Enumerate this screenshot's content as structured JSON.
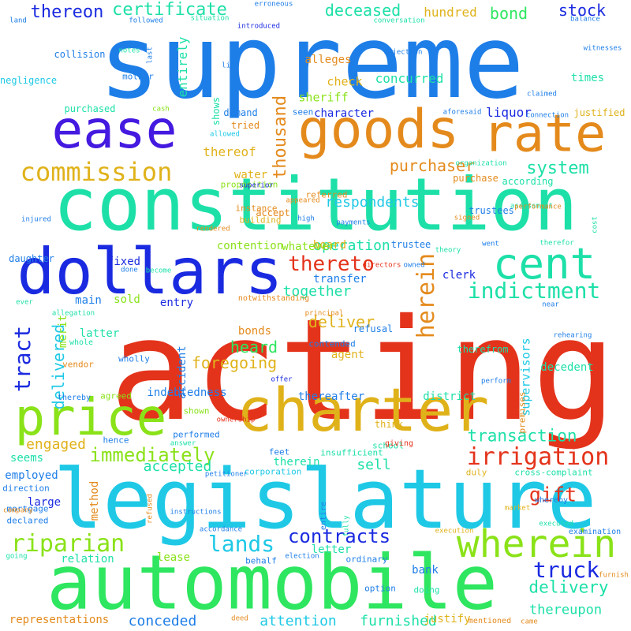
{
  "palette": {
    "blue": "#1e7ee8",
    "teal": "#1de0a8",
    "orange": "#e48a1c",
    "red": "#e4331b",
    "purple": "#4419e0",
    "green": "#2ee65f",
    "lime": "#8ae218",
    "cyan": "#1fc9e6",
    "gold": "#e0b21a",
    "navy": "#1a2ae0"
  },
  "words": [
    {
      "text": "supreme",
      "color": "blue"
    },
    {
      "text": "acting",
      "color": "red"
    },
    {
      "text": "constitution",
      "color": "teal"
    },
    {
      "text": "legislature",
      "color": "cyan"
    },
    {
      "text": "automobile",
      "color": "green"
    },
    {
      "text": "charter",
      "color": "gold"
    },
    {
      "text": "dollars",
      "color": "navy"
    },
    {
      "text": "goods",
      "color": "orange"
    },
    {
      "text": "rate",
      "color": "orange"
    },
    {
      "text": "ease",
      "color": "purple"
    },
    {
      "text": "price",
      "color": "lime"
    },
    {
      "text": "cent",
      "color": "teal"
    },
    {
      "text": "wherein",
      "color": "lime"
    },
    {
      "text": "commission",
      "color": "gold"
    },
    {
      "text": "riparian",
      "color": "lime"
    },
    {
      "text": "irrigation",
      "color": "red"
    },
    {
      "text": "indictment",
      "color": "teal"
    },
    {
      "text": "herein",
      "color": "orange"
    },
    {
      "text": "gift",
      "color": "red"
    },
    {
      "text": "thereto",
      "color": "red"
    },
    {
      "text": "lands",
      "color": "cyan"
    },
    {
      "text": "contracts",
      "color": "navy"
    },
    {
      "text": "truck",
      "color": "navy"
    },
    {
      "text": "immediately",
      "color": "lime"
    },
    {
      "text": "transaction",
      "color": "teal"
    },
    {
      "text": "delivery",
      "color": "teal"
    },
    {
      "text": "system",
      "color": "teal"
    },
    {
      "text": "purchaser",
      "color": "orange"
    },
    {
      "text": "thousand",
      "color": "orange"
    },
    {
      "text": "tract",
      "color": "navy"
    },
    {
      "text": "certificate",
      "color": "teal"
    },
    {
      "text": "deceased",
      "color": "teal"
    },
    {
      "text": "thereon",
      "color": "navy"
    },
    {
      "text": "bond",
      "color": "green"
    },
    {
      "text": "stock",
      "color": "navy"
    },
    {
      "text": "heard",
      "color": "green"
    },
    {
      "text": "deliver",
      "color": "gold"
    },
    {
      "text": "delivered",
      "color": "cyan"
    },
    {
      "text": "foregoing",
      "color": "gold"
    },
    {
      "text": "supervisors",
      "color": "cyan"
    },
    {
      "text": "thereupon",
      "color": "teal"
    },
    {
      "text": "respondents",
      "color": "cyan"
    },
    {
      "text": "together",
      "color": "teal"
    },
    {
      "text": "operation",
      "color": "teal"
    },
    {
      "text": "accepted",
      "color": "teal"
    },
    {
      "text": "engaged",
      "color": "gold"
    },
    {
      "text": "sell",
      "color": "teal"
    },
    {
      "text": "attention",
      "color": "cyan"
    },
    {
      "text": "conceded",
      "color": "blue"
    },
    {
      "text": "furnished",
      "color": "teal"
    },
    {
      "text": "representations",
      "color": "orange"
    },
    {
      "text": "hundred",
      "color": "gold"
    },
    {
      "text": "board",
      "color": "gold"
    },
    {
      "text": "alleges",
      "color": "orange"
    },
    {
      "text": "check",
      "color": "gold"
    },
    {
      "text": "sheriff",
      "color": "lime"
    },
    {
      "text": "concurred",
      "color": "teal"
    },
    {
      "text": "liquor",
      "color": "navy"
    },
    {
      "text": "character",
      "color": "navy"
    },
    {
      "text": "times",
      "color": "teal"
    },
    {
      "text": "justified",
      "color": "gold"
    },
    {
      "text": "entirely",
      "color": "teal"
    },
    {
      "text": "thereof",
      "color": "gold"
    },
    {
      "text": "water",
      "color": "gold"
    },
    {
      "text": "fixed",
      "color": "navy"
    },
    {
      "text": "sold",
      "color": "lime"
    },
    {
      "text": "main",
      "color": "blue"
    },
    {
      "text": "entry",
      "color": "navy"
    },
    {
      "text": "latter",
      "color": "teal"
    },
    {
      "text": "bonds",
      "color": "orange"
    },
    {
      "text": "agent",
      "color": "gold"
    },
    {
      "text": "transfer",
      "color": "blue"
    },
    {
      "text": "clerk",
      "color": "navy"
    },
    {
      "text": "merit",
      "color": "lime"
    },
    {
      "text": "accident",
      "color": "blue"
    },
    {
      "text": "indebtedness",
      "color": "blue"
    },
    {
      "text": "thereafter",
      "color": "blue"
    },
    {
      "text": "district",
      "color": "teal"
    },
    {
      "text": "decedent",
      "color": "teal"
    },
    {
      "text": "therein",
      "color": "teal"
    },
    {
      "text": "employed",
      "color": "blue"
    },
    {
      "text": "seems",
      "color": "teal"
    },
    {
      "text": "large",
      "color": "navy"
    },
    {
      "text": "method",
      "color": "orange"
    },
    {
      "text": "shown",
      "color": "lime"
    },
    {
      "text": "lease",
      "color": "lime"
    },
    {
      "text": "relation",
      "color": "teal"
    },
    {
      "text": "letter",
      "color": "teal"
    },
    {
      "text": "bank",
      "color": "blue"
    },
    {
      "text": "justify",
      "color": "gold"
    },
    {
      "text": "contention",
      "color": "lime"
    },
    {
      "text": "whatever",
      "color": "lime"
    },
    {
      "text": "daughter",
      "color": "blue"
    },
    {
      "text": "purchase",
      "color": "orange"
    },
    {
      "text": "according",
      "color": "teal"
    },
    {
      "text": "trustees",
      "color": "blue"
    },
    {
      "text": "trustee",
      "color": "blue"
    },
    {
      "text": "accept",
      "color": "orange"
    },
    {
      "text": "collision",
      "color": "blue"
    },
    {
      "text": "negligence",
      "color": "cyan"
    },
    {
      "text": "purchased",
      "color": "teal"
    },
    {
      "text": "mother",
      "color": "blue"
    },
    {
      "text": "tried",
      "color": "orange"
    },
    {
      "text": "demand",
      "color": "blue"
    },
    {
      "text": "shows",
      "color": "teal"
    },
    {
      "text": "seen",
      "color": "blue"
    },
    {
      "text": "proposition",
      "color": "lime"
    },
    {
      "text": "referred",
      "color": "orange"
    },
    {
      "text": "instance",
      "color": "orange"
    },
    {
      "text": "building",
      "color": "gold"
    },
    {
      "text": "think",
      "color": "gold"
    },
    {
      "text": "notwithstanding",
      "color": "orange"
    },
    {
      "text": "contended",
      "color": "blue"
    },
    {
      "text": "refusal",
      "color": "blue"
    },
    {
      "text": "therefrom",
      "color": "teal"
    },
    {
      "text": "vendor",
      "color": "orange"
    },
    {
      "text": "whole",
      "color": "teal"
    },
    {
      "text": "wholly",
      "color": "blue"
    },
    {
      "text": "agreed",
      "color": "lime"
    },
    {
      "text": "thereby",
      "color": "blue"
    },
    {
      "text": "hence",
      "color": "blue"
    },
    {
      "text": "performed",
      "color": "blue"
    },
    {
      "text": "feet",
      "color": "blue"
    },
    {
      "text": "insufficient",
      "color": "teal"
    },
    {
      "text": "school",
      "color": "teal"
    },
    {
      "text": "giving",
      "color": "red"
    },
    {
      "text": "premises",
      "color": "orange"
    },
    {
      "text": "duly",
      "color": "gold"
    },
    {
      "text": "cross-complaint",
      "color": "teal"
    },
    {
      "text": "corporation",
      "color": "cyan"
    },
    {
      "text": "direction",
      "color": "blue"
    },
    {
      "text": "mortgage",
      "color": "blue"
    },
    {
      "text": "declared",
      "color": "blue"
    },
    {
      "text": "company",
      "color": "orange"
    },
    {
      "text": "refused",
      "color": "orange"
    },
    {
      "text": "instructions",
      "color": "blue"
    },
    {
      "text": "accordance",
      "color": "blue"
    },
    {
      "text": "execution",
      "color": "gold"
    },
    {
      "text": "examination",
      "color": "blue"
    },
    {
      "text": "executed",
      "color": "teal"
    },
    {
      "text": "whereby",
      "color": "blue"
    },
    {
      "text": "market",
      "color": "gold"
    },
    {
      "text": "behalf",
      "color": "blue"
    },
    {
      "text": "election",
      "color": "blue"
    },
    {
      "text": "ordinary",
      "color": "blue"
    },
    {
      "text": "entire",
      "color": "blue"
    },
    {
      "text": "fully",
      "color": "teal"
    },
    {
      "text": "doing",
      "color": "teal"
    },
    {
      "text": "option",
      "color": "blue"
    },
    {
      "text": "deed",
      "color": "orange"
    },
    {
      "text": "came",
      "color": "orange"
    },
    {
      "text": "mentioned",
      "color": "orange"
    },
    {
      "text": "furnish",
      "color": "orange"
    },
    {
      "text": "going",
      "color": "teal"
    },
    {
      "text": "land",
      "color": "blue"
    },
    {
      "text": "followed",
      "color": "blue"
    },
    {
      "text": "situation",
      "color": "teal"
    },
    {
      "text": "erroneous",
      "color": "blue"
    },
    {
      "text": "conversation",
      "color": "teal"
    },
    {
      "text": "balance",
      "color": "blue"
    },
    {
      "text": "introduced",
      "color": "navy"
    },
    {
      "text": "notes",
      "color": "teal"
    },
    {
      "text": "last",
      "color": "blue"
    },
    {
      "text": "objection",
      "color": "blue"
    },
    {
      "text": "witnesses",
      "color": "blue"
    },
    {
      "text": "line",
      "color": "blue"
    },
    {
      "text": "claimed",
      "color": "blue"
    },
    {
      "text": "cash",
      "color": "lime"
    },
    {
      "text": "aforesaid",
      "color": "blue"
    },
    {
      "text": "connection",
      "color": "blue"
    },
    {
      "text": "allowed",
      "color": "cyan"
    },
    {
      "text": "appeared",
      "color": "orange"
    },
    {
      "text": "superior",
      "color": "navy"
    },
    {
      "text": "organization",
      "color": "teal"
    },
    {
      "text": "assessment",
      "color": "teal"
    },
    {
      "text": "performance",
      "color": "orange"
    },
    {
      "text": "cost",
      "color": "teal"
    },
    {
      "text": "injured",
      "color": "blue"
    },
    {
      "text": "rendered",
      "color": "orange"
    },
    {
      "text": "high",
      "color": "blue"
    },
    {
      "text": "payments",
      "color": "blue"
    },
    {
      "text": "signed",
      "color": "orange"
    },
    {
      "text": "went",
      "color": "blue"
    },
    {
      "text": "therefor",
      "color": "teal"
    },
    {
      "text": "directors",
      "color": "red"
    },
    {
      "text": "theory",
      "color": "teal"
    },
    {
      "text": "done",
      "color": "blue"
    },
    {
      "text": "become",
      "color": "teal"
    },
    {
      "text": "owned",
      "color": "blue"
    },
    {
      "text": "ever",
      "color": "teal"
    },
    {
      "text": "allegation",
      "color": "teal"
    },
    {
      "text": "principal",
      "color": "orange"
    },
    {
      "text": "near",
      "color": "blue"
    },
    {
      "text": "rehearing",
      "color": "blue"
    },
    {
      "text": "offer",
      "color": "navy"
    },
    {
      "text": "perform",
      "color": "blue"
    },
    {
      "text": "ownership",
      "color": "red"
    },
    {
      "text": "answer",
      "color": "teal"
    },
    {
      "text": "petitioner",
      "color": "blue"
    },
    {
      "text": "testified",
      "color": "orange"
    }
  ]
}
